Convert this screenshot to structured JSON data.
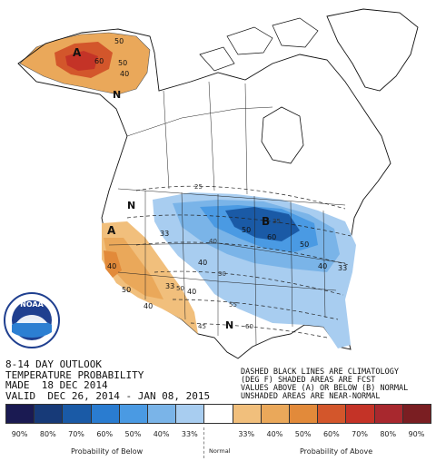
{
  "title_lines": [
    "8-14 DAY OUTLOOK",
    "TEMPERATURE PROBABILITY"
  ],
  "made_line": "MADE  18 DEC 2014",
  "valid_line": "VALID  DEC 26, 2014 - JAN 08, 2015",
  "notes": [
    "DASHED BLACK LINES ARE CLIMATOLOGY",
    "(DEG F) SHADED AREAS ARE FCST",
    "VALUES ABOVE (A) OR BELOW (B) NORMAL",
    "UNSHADED AREAS ARE NEAR-NORMAL"
  ],
  "map_labels": {
    "above_a": "A",
    "below_b": "B",
    "normal_n": "N",
    "alaska": [
      "50",
      "60",
      "50",
      "40"
    ],
    "west": [
      "40",
      "50",
      "33",
      "40"
    ],
    "east": [
      "33",
      "40",
      "50",
      "60",
      "50",
      "40",
      "40",
      "33"
    ],
    "climo": [
      "25",
      "30",
      "35",
      "40",
      "45",
      "50",
      "55",
      "60"
    ]
  },
  "logo": {
    "text": "NOAA",
    "colors": {
      "ring": "#1f3f8f",
      "center": "#2c7fd2"
    }
  },
  "legend": {
    "swatches": [
      {
        "label": "90%",
        "color": "#1a1a52"
      },
      {
        "label": "80%",
        "color": "#173a78"
      },
      {
        "label": "70%",
        "color": "#1a5aa6"
      },
      {
        "label": "60%",
        "color": "#2a7cd0"
      },
      {
        "label": "50%",
        "color": "#4a9ae3"
      },
      {
        "label": "40%",
        "color": "#7ab4e8"
      },
      {
        "label": "33%",
        "color": "#a8cdf0"
      },
      {
        "label": "",
        "color": "#ffffff"
      },
      {
        "label": "33%",
        "color": "#f1bf7c"
      },
      {
        "label": "40%",
        "color": "#eaa85a"
      },
      {
        "label": "50%",
        "color": "#e28a3a"
      },
      {
        "label": "60%",
        "color": "#d3562b"
      },
      {
        "label": "70%",
        "color": "#c43327"
      },
      {
        "label": "80%",
        "color": "#a8282e"
      },
      {
        "label": "90%",
        "color": "#7a1e22"
      }
    ],
    "below_caption": "Probability of Below",
    "normal_caption": "Normal",
    "above_caption": "Probability of Above"
  }
}
